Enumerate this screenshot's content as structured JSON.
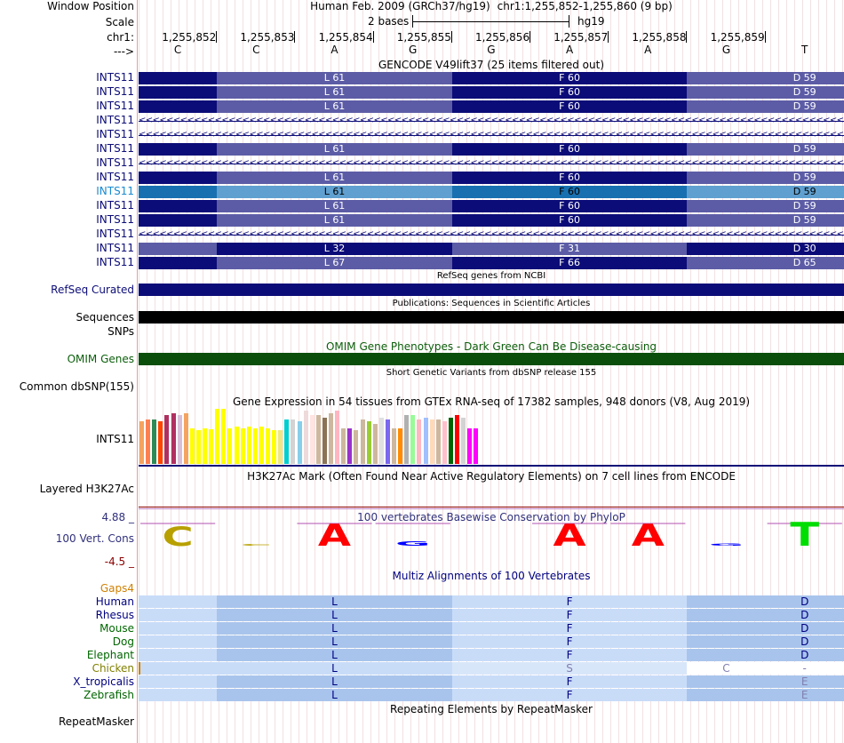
{
  "header": {
    "window_position_label": "Window Position",
    "scale_label": "Scale",
    "chrom_label": "chr1:",
    "strand_label": "--->",
    "assembly_text": "Human Feb. 2009 (GRCh37/hg19)",
    "position_text": "chr1:1,255,852-1,255,860 (9 bp)",
    "scale_text": "2 bases",
    "db_text": "hg19",
    "coords": [
      "1,255,852",
      "1,255,853",
      "1,255,854",
      "1,255,855",
      "1,255,856",
      "1,255,857",
      "1,255,858",
      "1,255,859"
    ],
    "bases": [
      "C",
      "C",
      "A",
      "G",
      "G",
      "A",
      "A",
      "G",
      "T"
    ]
  },
  "gencode": {
    "title": "GENCODE V49lift37 (25 items filtered out)",
    "rows": [
      {
        "label": "INTS11",
        "type": "coding",
        "codons": [
          "L 61",
          "F 60",
          "D 59"
        ],
        "highlight": false
      },
      {
        "label": "INTS11",
        "type": "coding",
        "codons": [
          "L 61",
          "F 60",
          "D 59"
        ],
        "highlight": false
      },
      {
        "label": "INTS11",
        "type": "coding",
        "codons": [
          "L 61",
          "F 60",
          "D 59"
        ],
        "highlight": false
      },
      {
        "label": "INTS11",
        "type": "intron",
        "codons": [],
        "highlight": false
      },
      {
        "label": "INTS11",
        "type": "intron",
        "codons": [],
        "highlight": false
      },
      {
        "label": "INTS11",
        "type": "coding",
        "codons": [
          "L 61",
          "F 60",
          "D 59"
        ],
        "highlight": false
      },
      {
        "label": "INTS11",
        "type": "intron",
        "codons": [],
        "highlight": false
      },
      {
        "label": "INTS11",
        "type": "coding",
        "codons": [
          "L 61",
          "F 60",
          "D 59"
        ],
        "highlight": false
      },
      {
        "label": "INTS11",
        "type": "coding",
        "codons": [
          "L 61",
          "F 60",
          "D 59"
        ],
        "highlight": true
      },
      {
        "label": "INTS11",
        "type": "coding",
        "codons": [
          "L 61",
          "F 60",
          "D 59"
        ],
        "highlight": false
      },
      {
        "label": "INTS11",
        "type": "coding",
        "codons": [
          "L 61",
          "F 60",
          "D 59"
        ],
        "highlight": false
      },
      {
        "label": "INTS11",
        "type": "intron",
        "codons": [],
        "highlight": false
      },
      {
        "label": "INTS11",
        "type": "coding2",
        "codons": [
          "L 32",
          "F 31",
          "D 30"
        ],
        "highlight": false
      },
      {
        "label": "INTS11",
        "type": "coding3",
        "codons": [
          "L 67",
          "F 66",
          "D 65"
        ],
        "highlight": false
      }
    ]
  },
  "refseq": {
    "title": "RefSeq genes from NCBI",
    "label": "RefSeq Curated"
  },
  "publications": {
    "title": "Publications: Sequences in Scientific Articles",
    "label": "Sequences"
  },
  "snps": {
    "label": "SNPs"
  },
  "omim": {
    "title": "OMIM Gene Phenotypes - Dark Green Can Be Disease-causing",
    "label": "OMIM Genes"
  },
  "dbsnp": {
    "title": "Short Genetic Variants from dbSNP release 155",
    "label": "Common dbSNP(155)"
  },
  "gtex": {
    "title": "Gene Expression in 54 tissues from GTEx RNA-seq of 17382 samples, 948 donors (V8, Aug 2019)",
    "label": "INTS11",
    "values": [
      48,
      50,
      50,
      48,
      55,
      57,
      55,
      57,
      40,
      38,
      40,
      39,
      62,
      62,
      40,
      42,
      40,
      42,
      40,
      42,
      40,
      38,
      38,
      50,
      50,
      48,
      60,
      55,
      55,
      52,
      57,
      60,
      40,
      40,
      38,
      50,
      48,
      45,
      52,
      50,
      40,
      40,
      55,
      55,
      50,
      52,
      50,
      50,
      48,
      52,
      55,
      52,
      40,
      40
    ],
    "colors": [
      "#f4a460",
      "#ff7f50",
      "#2e8b57",
      "#ff4500",
      "#b03060",
      "#b03060",
      "#d8bfd8",
      "#f4a460",
      "#ffff00",
      "#ffff00",
      "#ffff00",
      "#ffff00",
      "#ffff00",
      "#ffff00",
      "#ffff00",
      "#ffff00",
      "#ffff00",
      "#ffff00",
      "#ffff00",
      "#ffff00",
      "#ffff00",
      "#ffff00",
      "#eee685",
      "#00ced1",
      "#d3d3d3",
      "#87ceeb",
      "#eedada",
      "#ffe4e1",
      "#cdb79e",
      "#8b7355",
      "#cdb79e",
      "#ffb6c1",
      "#cdb79e",
      "#9932cc",
      "#cdb79e",
      "#cdb79e",
      "#9acd32",
      "#cdb79e",
      "#e0e0e0",
      "#7b68ee",
      "#cdb79e",
      "#ff8c00",
      "#b0b0b0",
      "#98fb98",
      "#ffb6c1",
      "#a0c0ff",
      "#ffdab9",
      "#cdb79e",
      "#ffc0cb",
      "#006400",
      "#ff0000",
      "#d3d3d3",
      "#ff00ff",
      "#ff00ff"
    ]
  },
  "h3k27ac": {
    "title": "H3K27Ac Mark (Often Found Near Active Regulatory Elements) on 7 cell lines from ENCODE",
    "label": "Layered H3K27Ac"
  },
  "phylop": {
    "title": "100 vertebrates Basewise Conservation by PhyloP",
    "label": "100 Vert. Cons",
    "ymax": "4.88 _",
    "ymin": "-4.5 _",
    "bases": [
      "C",
      "C",
      "A",
      "G",
      "G",
      "A",
      "A",
      "G",
      "T"
    ],
    "scores": [
      2.6,
      -0.2,
      3.0,
      0.6,
      0.0,
      3.0,
      3.0,
      0.3,
      3.2
    ],
    "base_colors": [
      "#b8a000",
      "#b8a000",
      "#ff0000",
      "#0000ff",
      "#0000ff",
      "#ff0000",
      "#ff0000",
      "#0000ff",
      "#00dd00"
    ]
  },
  "multiz": {
    "title": "Multiz Alignments of 100 Vertebrates",
    "gaps_label": "Gaps4",
    "rows": [
      {
        "label": "Human",
        "color": "#000080",
        "aa": [
          "L",
          "F",
          "D"
        ]
      },
      {
        "label": "Rhesus",
        "color": "#000080",
        "aa": [
          "L",
          "F",
          "D"
        ]
      },
      {
        "label": "Mouse",
        "color": "#006600",
        "aa": [
          "L",
          "F",
          "D"
        ]
      },
      {
        "label": "Dog",
        "color": "#006600",
        "aa": [
          "L",
          "F",
          "D"
        ]
      },
      {
        "label": "Elephant",
        "color": "#006600",
        "aa": [
          "L",
          "F",
          "D"
        ]
      },
      {
        "label": "Chicken",
        "color": "#808000",
        "aa": [
          "L",
          "S",
          "C",
          "-"
        ]
      },
      {
        "label": "X_tropicalis",
        "color": "#000080",
        "aa": [
          "L",
          "F",
          "E"
        ]
      },
      {
        "label": "Zebrafish",
        "color": "#006600",
        "aa": [
          "L",
          "F",
          "E"
        ]
      }
    ]
  },
  "repeatmasker": {
    "title": "Repeating Elements by RepeatMasker",
    "label": "RepeatMasker"
  },
  "colors": {
    "coding_dark": "#0c0c78",
    "coding_light": "#5c5ca6",
    "hl_dark": "#1870b0",
    "hl_light": "#60a0d0",
    "label_blue": "#0c0c78",
    "label_hl": "#1a8ad0",
    "omim": "#0b4e0b",
    "grid": "#e8c8c8"
  }
}
